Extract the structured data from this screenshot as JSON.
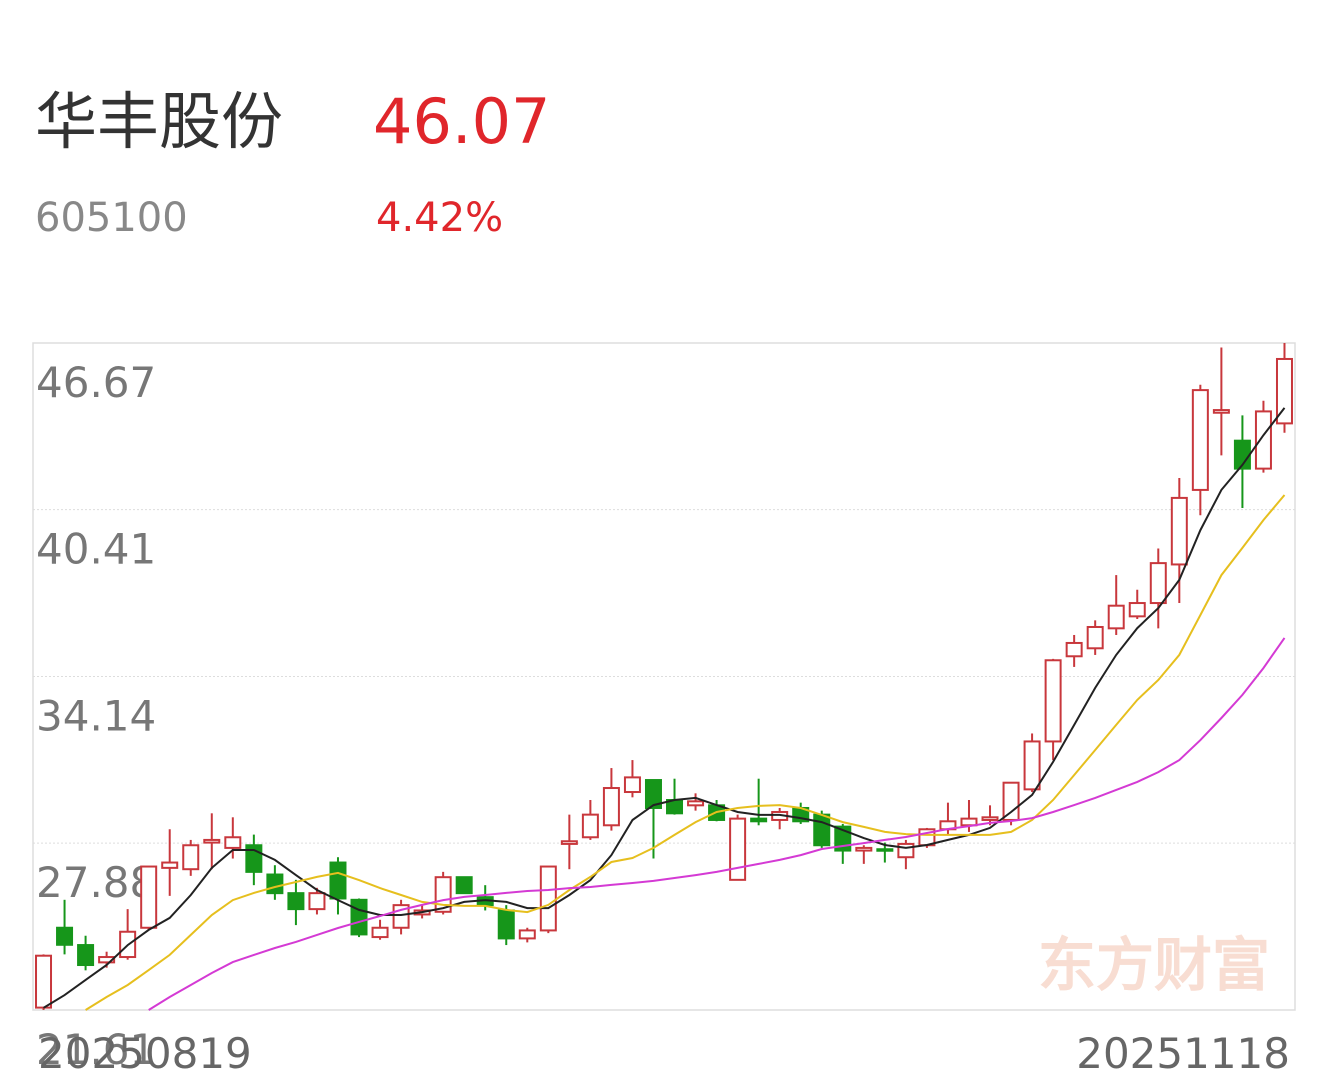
{
  "header": {
    "name": "华丰股份",
    "price": 46.07,
    "code": "605100",
    "change": "4.42%"
  },
  "chart_data": {
    "type": "candlestick",
    "categories": [
      "20250819",
      null,
      null,
      null,
      null,
      null,
      null,
      null,
      null,
      null,
      null,
      null,
      null,
      null,
      null,
      null,
      null,
      null,
      null,
      null,
      null,
      null,
      null,
      null,
      null,
      null,
      null,
      null,
      null,
      null,
      null,
      null,
      null,
      null,
      null,
      null,
      null,
      null,
      null,
      null,
      null,
      null,
      null,
      null,
      null,
      null,
      null,
      null,
      null,
      null,
      null,
      null,
      null,
      null,
      null,
      null,
      null,
      null,
      null,
      "20251118"
    ],
    "open": [
      21.7,
      24.7,
      24.05,
      23.4,
      23.6,
      24.7,
      26.95,
      26.9,
      27.9,
      27.7,
      27.8,
      26.7,
      26.0,
      25.4,
      27.15,
      25.75,
      24.35,
      24.7,
      25.2,
      25.3,
      26.6,
      25.85,
      25.35,
      24.3,
      24.6,
      27.85,
      28.1,
      28.55,
      29.8,
      30.25,
      29.5,
      29.3,
      29.3,
      26.5,
      28.8,
      28.75,
      29.2,
      28.95,
      28.5,
      27.6,
      27.65,
      27.35,
      27.8,
      28.4,
      28.55,
      28.75,
      28.75,
      29.9,
      31.7,
      34.9,
      35.2,
      35.95,
      36.4,
      36.9,
      38.35,
      41.15,
      44.05,
      43.0,
      41.95,
      43.65
    ],
    "high": [
      23.7,
      25.75,
      24.4,
      23.8,
      25.4,
      27.0,
      28.4,
      28.0,
      29.0,
      28.85,
      28.2,
      27.05,
      26.5,
      26.2,
      27.35,
      25.8,
      25.0,
      25.75,
      25.55,
      26.8,
      26.6,
      26.3,
      25.55,
      24.7,
      27.0,
      28.95,
      29.5,
      30.7,
      31.0,
      30.25,
      30.3,
      29.75,
      29.5,
      28.95,
      30.3,
      29.2,
      29.4,
      29.1,
      28.6,
      27.8,
      27.9,
      28.0,
      28.45,
      29.4,
      29.5,
      29.3,
      30.15,
      32.0,
      34.8,
      35.7,
      36.25,
      37.95,
      37.4,
      38.95,
      41.6,
      45.1,
      46.5,
      43.95,
      44.5,
      46.67
    ],
    "low": [
      21.61,
      23.7,
      23.1,
      23.2,
      23.5,
      24.6,
      25.9,
      26.65,
      26.9,
      27.3,
      26.3,
      25.75,
      24.8,
      25.2,
      25.2,
      24.35,
      24.25,
      24.45,
      25.05,
      25.2,
      26.0,
      25.35,
      24.05,
      24.15,
      24.5,
      26.9,
      28.0,
      28.35,
      29.6,
      27.3,
      28.95,
      29.1,
      28.7,
      26.5,
      28.55,
      28.4,
      28.6,
      27.7,
      27.1,
      27.1,
      27.15,
      26.9,
      27.7,
      28.2,
      28.3,
      28.55,
      28.55,
      29.8,
      31.0,
      34.5,
      34.95,
      35.7,
      36.3,
      35.95,
      36.9,
      40.2,
      42.45,
      40.47,
      41.8,
      43.3
    ],
    "close": [
      23.65,
      24.06,
      23.3,
      23.6,
      24.55,
      27.0,
      27.15,
      27.8,
      28.0,
      28.1,
      26.8,
      26.0,
      25.4,
      26.0,
      25.8,
      24.45,
      24.7,
      25.55,
      25.35,
      26.6,
      26.0,
      25.55,
      24.3,
      24.6,
      27.0,
      27.95,
      28.95,
      29.95,
      30.35,
      29.2,
      29.0,
      29.45,
      28.75,
      28.8,
      28.7,
      29.05,
      28.7,
      27.8,
      27.6,
      27.7,
      27.6,
      27.85,
      28.4,
      28.7,
      28.8,
      28.85,
      30.15,
      31.7,
      34.75,
      35.4,
      36.0,
      36.8,
      36.9,
      38.4,
      40.85,
      44.9,
      44.15,
      41.95,
      44.1,
      46.07
    ],
    "up_color": "#c8373c",
    "down_color": "#16961a",
    "series": [
      {
        "color": "#222222",
        "values": [
          21.69,
          22.17,
          22.74,
          23.3,
          24.05,
          24.62,
          25.07,
          25.93,
          26.95,
          27.62,
          27.62,
          27.25,
          26.68,
          26.12,
          25.74,
          25.37,
          25.18,
          25.18,
          25.29,
          25.44,
          25.67,
          25.74,
          25.67,
          25.44,
          25.44,
          25.93,
          26.49,
          27.43,
          28.75,
          29.31,
          29.5,
          29.58,
          29.31,
          29.05,
          28.94,
          28.94,
          28.82,
          28.67,
          28.37,
          28.07,
          27.81,
          27.7,
          27.81,
          28.0,
          28.19,
          28.45,
          29.05,
          29.69,
          30.93,
          32.32,
          33.71,
          34.95,
          35.96,
          36.71,
          37.77,
          39.64,
          41.15,
          42.09,
          43.21,
          44.23
        ]
      },
      {
        "color": "#e6bf1e",
        "values": [
          null,
          null,
          21.61,
          22.1,
          22.55,
          23.11,
          23.68,
          24.43,
          25.18,
          25.74,
          26.01,
          26.23,
          26.42,
          26.61,
          26.76,
          26.49,
          26.19,
          25.93,
          25.67,
          25.56,
          25.52,
          25.52,
          25.37,
          25.29,
          25.56,
          26.12,
          26.61,
          27.17,
          27.32,
          27.7,
          28.19,
          28.67,
          29.05,
          29.2,
          29.28,
          29.31,
          29.2,
          28.94,
          28.67,
          28.49,
          28.3,
          28.22,
          28.19,
          28.19,
          28.19,
          28.19,
          28.3,
          28.75,
          29.5,
          30.44,
          31.38,
          32.32,
          33.26,
          34.01,
          34.95,
          36.45,
          37.95,
          38.97,
          40.02,
          40.96
        ]
      },
      {
        "color": "#d43ad4",
        "values": [
          null,
          null,
          null,
          null,
          null,
          21.61,
          22.1,
          22.55,
          23.0,
          23.41,
          23.68,
          23.94,
          24.17,
          24.43,
          24.69,
          24.92,
          25.14,
          25.37,
          25.56,
          25.74,
          25.86,
          25.93,
          26.01,
          26.08,
          26.12,
          26.19,
          26.23,
          26.31,
          26.38,
          26.46,
          26.57,
          26.68,
          26.8,
          26.95,
          27.1,
          27.25,
          27.43,
          27.66,
          27.77,
          27.88,
          28.0,
          28.11,
          28.26,
          28.41,
          28.52,
          28.64,
          28.71,
          28.82,
          29.05,
          29.31,
          29.58,
          29.88,
          30.18,
          30.55,
          31.0,
          31.75,
          32.58,
          33.45,
          34.46,
          35.59
        ]
      }
    ],
    "ylim": [
      21.61,
      46.67
    ],
    "yticks": [
      21.61,
      27.88,
      34.14,
      40.41,
      46.67
    ],
    "grid": true,
    "watermark": "东方财富"
  }
}
